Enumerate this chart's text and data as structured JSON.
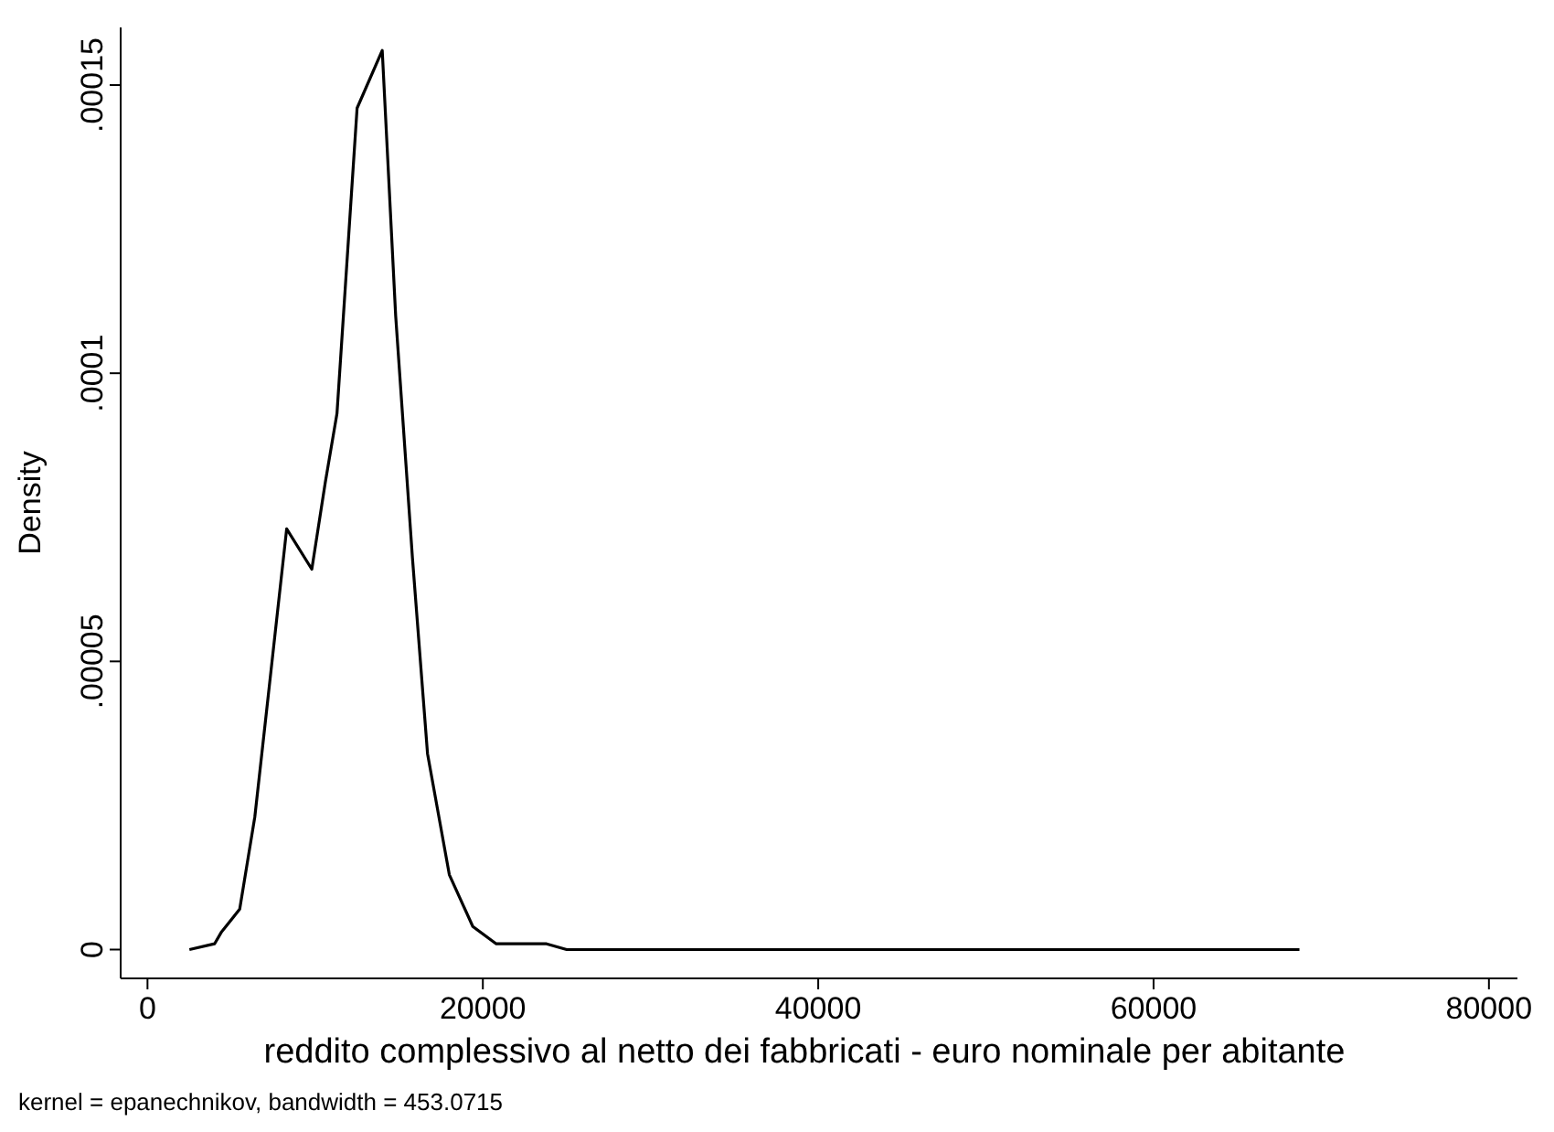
{
  "chart_data": {
    "type": "line",
    "ylabel": "Density",
    "xlabel": "reddito complessivo al netto dei fabbricati - euro nominale per abitante",
    "annotations": [
      "kernel = epanechnikov, bandwidth = 453.0715"
    ],
    "x": [
      2500,
      4000,
      4400,
      5500,
      6400,
      7200,
      8300,
      9800,
      10600,
      11300,
      12500,
      14000,
      14800,
      15800,
      16700,
      18000,
      19400,
      20800,
      23800,
      25000,
      30000,
      40000,
      50000,
      60000,
      65000,
      68700
    ],
    "series": [
      {
        "color": "#000000",
        "values": [
          0,
          1e-06,
          3e-06,
          7e-06,
          2.3e-05,
          4.4e-05,
          7.3e-05,
          6.6e-05,
          8.1e-05,
          9.3e-05,
          0.000146,
          0.000156,
          0.00011,
          6.8e-05,
          3.4e-05,
          1.3e-05,
          4e-06,
          1e-06,
          1e-06,
          0,
          0,
          0,
          0,
          0,
          0,
          0
        ]
      }
    ],
    "xlim": [
      -1600,
      81700
    ],
    "ylim": [
      -5e-06,
      0.00016
    ],
    "xticks": [
      0,
      20000,
      40000,
      60000,
      80000
    ],
    "yticks": [
      {
        "value": 0,
        "label": "0"
      },
      {
        "value": 5e-05,
        "label": ".00005"
      },
      {
        "value": 0.0001,
        "label": ".0001"
      },
      {
        "value": 0.00015,
        "label": ".00015"
      }
    ],
    "grid": false
  }
}
